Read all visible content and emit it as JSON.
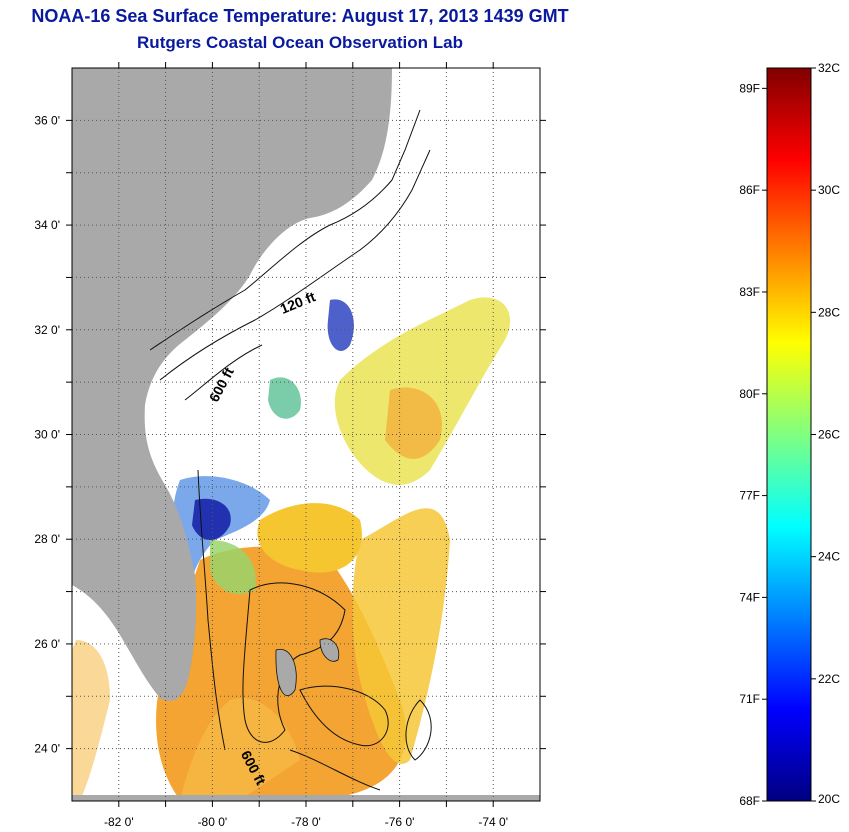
{
  "header": {
    "title": "NOAA-16 Sea Surface Temperature:  August 17, 2013 1439 GMT",
    "subtitle": "Rutgers Coastal Ocean Observation Lab"
  },
  "map": {
    "lon_range": [
      -83,
      -73
    ],
    "lat_range": [
      23,
      37
    ],
    "lon_ticks": [
      {
        "value": -82,
        "label": "-82 0'"
      },
      {
        "value": -80,
        "label": "-80 0'"
      },
      {
        "value": -78,
        "label": "-78 0'"
      },
      {
        "value": -76,
        "label": "-76 0'"
      },
      {
        "value": -74,
        "label": "-74 0'"
      }
    ],
    "lat_ticks": [
      {
        "value": 36,
        "label": "36 0'"
      },
      {
        "value": 34,
        "label": "34 0'"
      },
      {
        "value": 32,
        "label": "32 0'"
      },
      {
        "value": 30,
        "label": "30 0'"
      },
      {
        "value": 28,
        "label": "28 0'"
      },
      {
        "value": 26,
        "label": "26 0'"
      },
      {
        "value": 24,
        "label": "24 0'"
      }
    ],
    "grid": "dotted",
    "contour_labels": [
      {
        "text": "120 ft",
        "lon": -78.5,
        "lat": 32.3
      },
      {
        "text": "600 ft",
        "lon": -79.9,
        "lat": 30.6
      },
      {
        "text": "600 ft",
        "lon": -79.4,
        "lat": 23.9
      }
    ],
    "land_color": "#a9a9a9",
    "no_data_color": "#ffffff"
  },
  "colorbar": {
    "range_c": [
      20,
      32
    ],
    "celsius_ticks": [
      {
        "value": 32,
        "label": "32C"
      },
      {
        "value": 30,
        "label": "30C"
      },
      {
        "value": 28,
        "label": "28C"
      },
      {
        "value": 26,
        "label": "26C"
      },
      {
        "value": 24,
        "label": "24C"
      },
      {
        "value": 22,
        "label": "22C"
      },
      {
        "value": 20,
        "label": "20C"
      }
    ],
    "fahrenheit_ticks": [
      {
        "value": 89,
        "label": "89F"
      },
      {
        "value": 86,
        "label": "86F"
      },
      {
        "value": 83,
        "label": "83F"
      },
      {
        "value": 80,
        "label": "80F"
      },
      {
        "value": 77,
        "label": "77F"
      },
      {
        "value": 74,
        "label": "74F"
      },
      {
        "value": 71,
        "label": "71F"
      },
      {
        "value": 68,
        "label": "68F"
      }
    ],
    "colors": [
      "#000080",
      "#0000ff",
      "#0080ff",
      "#00ffff",
      "#80ff80",
      "#ffff00",
      "#ff8000",
      "#ff0000",
      "#800000"
    ]
  }
}
